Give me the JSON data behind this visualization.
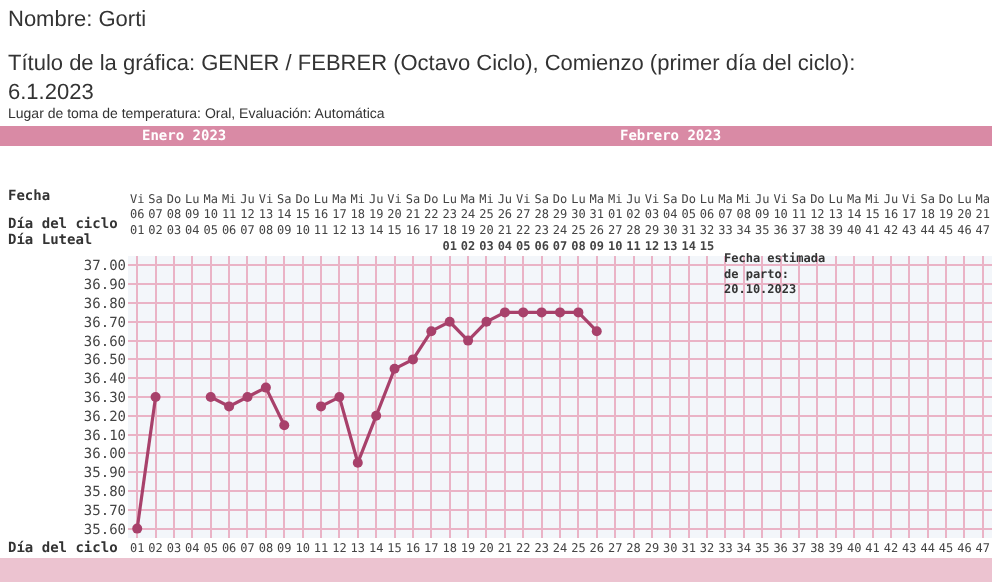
{
  "chart_data": {
    "type": "line",
    "title": "Título de la gráfica: GENER / FEBRER (Octavo Ciclo), Comienzo (primer día del ciclo): 6.1.2023",
    "subtitle": "Lugar de toma de temperatura: Oral, Evaluación: Automática",
    "xlabel": "Día del ciclo",
    "x2label": "Fecha",
    "annotations": [
      "Nombre: Gorti",
      "Enero 2023",
      "Febrero 2023",
      "Fecha estimada\nde parto:\n20.10.2023",
      "Día Luteal"
    ],
    "x": [
      "2023-01-06",
      "2023-01-07",
      "2023-01-08",
      "2023-01-09",
      "2023-01-10",
      "2023-01-11",
      "2023-01-12",
      "2023-01-13",
      "2023-01-14",
      "2023-01-15",
      "2023-01-16",
      "2023-01-17",
      "2023-01-18",
      "2023-01-19",
      "2023-01-20",
      "2023-01-21",
      "2023-01-22",
      "2023-01-23",
      "2023-01-24",
      "2023-01-25",
      "2023-01-26",
      "2023-01-27",
      "2023-01-28",
      "2023-01-29",
      "2023-01-30",
      "2023-01-31"
    ],
    "series": [
      {
        "color": "#a8416b",
        "values": [
          35.6,
          36.3,
          null,
          null,
          36.3,
          36.25,
          36.3,
          36.35,
          36.15,
          null,
          36.25,
          36.3,
          35.95,
          36.2,
          36.45,
          36.5,
          36.65,
          36.7,
          36.6,
          36.7,
          36.75,
          36.75,
          36.75,
          36.75,
          36.75,
          36.65
        ]
      }
    ],
    "marker": "circle",
    "line_style": "solid",
    "grid": true,
    "legend": false,
    "xlim": [
      "2023-01-05T12:00",
      "2023-02-21T12:00"
    ],
    "xticks": [
      {
        "value": "2023-01-06",
        "label": "01"
      },
      {
        "value": "2023-01-07",
        "label": "02"
      },
      {
        "value": "2023-01-08",
        "label": "03"
      },
      {
        "value": "2023-01-09",
        "label": "04"
      },
      {
        "value": "2023-01-10",
        "label": "05"
      },
      {
        "value": "2023-01-11",
        "label": "06"
      },
      {
        "value": "2023-01-12",
        "label": "07"
      },
      {
        "value": "2023-01-13",
        "label": "08"
      },
      {
        "value": "2023-01-14",
        "label": "09"
      },
      {
        "value": "2023-01-15",
        "label": "10"
      },
      {
        "value": "2023-01-16",
        "label": "11"
      },
      {
        "value": "2023-01-17",
        "label": "12"
      },
      {
        "value": "2023-01-18",
        "label": "13"
      },
      {
        "value": "2023-01-19",
        "label": "14"
      },
      {
        "value": "2023-01-20",
        "label": "15"
      },
      {
        "value": "2023-01-21",
        "label": "16"
      },
      {
        "value": "2023-01-22",
        "label": "17"
      },
      {
        "value": "2023-01-23",
        "label": "18"
      },
      {
        "value": "2023-01-24",
        "label": "19"
      },
      {
        "value": "2023-01-25",
        "label": "20"
      },
      {
        "value": "2023-01-26",
        "label": "21"
      },
      {
        "value": "2023-01-27",
        "label": "22"
      },
      {
        "value": "2023-01-28",
        "label": "23"
      },
      {
        "value": "2023-01-29",
        "label": "24"
      },
      {
        "value": "2023-01-30",
        "label": "25"
      },
      {
        "value": "2023-01-31",
        "label": "26"
      },
      {
        "value": "2023-02-01",
        "label": "27"
      },
      {
        "value": "2023-02-02",
        "label": "28"
      },
      {
        "value": "2023-02-03",
        "label": "29"
      },
      {
        "value": "2023-02-04",
        "label": "30"
      },
      {
        "value": "2023-02-05",
        "label": "31"
      },
      {
        "value": "2023-02-06",
        "label": "32"
      },
      {
        "value": "2023-02-07",
        "label": "33"
      },
      {
        "value": "2023-02-08",
        "label": "34"
      },
      {
        "value": "2023-02-09",
        "label": "35"
      },
      {
        "value": "2023-02-10",
        "label": "36"
      },
      {
        "value": "2023-02-11",
        "label": "37"
      },
      {
        "value": "2023-02-12",
        "label": "38"
      },
      {
        "value": "2023-02-13",
        "label": "39"
      },
      {
        "value": "2023-02-14",
        "label": "40"
      },
      {
        "value": "2023-02-15",
        "label": "41"
      },
      {
        "value": "2023-02-16",
        "label": "42"
      },
      {
        "value": "2023-02-17",
        "label": "43"
      },
      {
        "value": "2023-02-18",
        "label": "44"
      },
      {
        "value": "2023-02-19",
        "label": "45"
      },
      {
        "value": "2023-02-20",
        "label": "46"
      },
      {
        "value": "2023-02-21",
        "label": "47"
      }
    ],
    "x2lim": [
      "2023-01-05T12:00",
      "2023-02-21T12:00"
    ],
    "x2ticks": [
      {
        "value": "2023-01-06",
        "label": "Vi\n06\n01"
      },
      {
        "value": "2023-01-07",
        "label": "Sa\n07\n02"
      },
      {
        "value": "2023-01-08",
        "label": "Do\n08\n03"
      },
      {
        "value": "2023-01-09",
        "label": "Lu\n09\n04"
      },
      {
        "value": "2023-01-10",
        "label": "Ma\n10\n05"
      },
      {
        "value": "2023-01-11",
        "label": "Mi\n11\n06"
      },
      {
        "value": "2023-01-12",
        "label": "Ju\n12\n07"
      },
      {
        "value": "2023-01-13",
        "label": "Vi\n13\n08"
      },
      {
        "value": "2023-01-14",
        "label": "Sa\n14\n09"
      },
      {
        "value": "2023-01-15",
        "label": "Do\n15\n10"
      },
      {
        "value": "2023-01-16",
        "label": "Lu\n16\n11"
      },
      {
        "value": "2023-01-17",
        "label": "Ma\n17\n12"
      },
      {
        "value": "2023-01-18",
        "label": "Mi\n18\n13"
      },
      {
        "value": "2023-01-19",
        "label": "Ju\n19\n14"
      },
      {
        "value": "2023-01-20",
        "label": "Vi\n20\n15"
      },
      {
        "value": "2023-01-21",
        "label": "Sa\n21\n16"
      },
      {
        "value": "2023-01-22",
        "label": "Do\n22\n17"
      },
      {
        "value": "2023-01-23",
        "label": "Lu\n23\n18\n01"
      },
      {
        "value": "2023-01-24",
        "label": "Ma\n24\n19\n02"
      },
      {
        "value": "2023-01-25",
        "label": "Mi\n25\n20\n03"
      },
      {
        "value": "2023-01-26",
        "label": "Ju\n26\n21\n04"
      },
      {
        "value": "2023-01-27",
        "label": "Vi\n27\n22\n05"
      },
      {
        "value": "2023-01-28",
        "label": "Sa\n28\n23\n06"
      },
      {
        "value": "2023-01-29",
        "label": "Do\n29\n24\n07"
      },
      {
        "value": "2023-01-30",
        "label": "Lu\n30\n25\n08"
      },
      {
        "value": "2023-01-31",
        "label": "Ma\n31\n26\n09"
      },
      {
        "value": "2023-02-01",
        "label": "Mi\n01\n27\n10"
      },
      {
        "value": "2023-02-02",
        "label": "Ju\n02\n28\n11"
      },
      {
        "value": "2023-02-03",
        "label": "Vi\n03\n29\n12"
      },
      {
        "value": "2023-02-04",
        "label": "Sa\n04\n30\n13"
      },
      {
        "value": "2023-02-05",
        "label": "Do\n05\n31\n14"
      },
      {
        "value": "2023-02-06",
        "label": "Lu\n06\n32\n15"
      },
      {
        "value": "2023-02-07",
        "label": "Ma\n07\n33"
      },
      {
        "value": "2023-02-08",
        "label": "Mi\n08\n34"
      },
      {
        "value": "2023-02-09",
        "label": "Ju\n09\n35"
      },
      {
        "value": "2023-02-10",
        "label": "Vi\n10\n36"
      },
      {
        "value": "2023-02-11",
        "label": "Sa\n11\n37"
      },
      {
        "value": "2023-02-12",
        "label": "Do\n12\n38"
      },
      {
        "value": "2023-02-13",
        "label": "Lu\n13\n39"
      },
      {
        "value": "2023-02-14",
        "label": "Ma\n14\n40"
      },
      {
        "value": "2023-02-15",
        "label": "Mi\n15\n41"
      },
      {
        "value": "2023-02-16",
        "label": "Ju\n16\n42"
      },
      {
        "value": "2023-02-17",
        "label": "Vi\n17\n43"
      },
      {
        "value": "2023-02-18",
        "label": "Sa\n18\n44"
      },
      {
        "value": "2023-02-19",
        "label": "Do\n19\n45"
      },
      {
        "value": "2023-02-20",
        "label": "Lu\n20\n46"
      },
      {
        "value": "2023-02-21",
        "label": "Ma\n21\n47"
      }
    ],
    "ylim": [
      35.55,
      37.05
    ],
    "yticks": [
      {
        "value": 35.6,
        "label": "35.60"
      },
      {
        "value": 35.7,
        "label": "35.70"
      },
      {
        "value": 35.8,
        "label": "35.80"
      },
      {
        "value": 35.9,
        "label": "35.90"
      },
      {
        "value": 36.0,
        "label": "36.00"
      },
      {
        "value": 36.1,
        "label": "36.10"
      },
      {
        "value": 36.2,
        "label": "36.20"
      },
      {
        "value": 36.3,
        "label": "36.30"
      },
      {
        "value": 36.4,
        "label": "36.40"
      },
      {
        "value": 36.5,
        "label": "36.50"
      },
      {
        "value": 36.6,
        "label": "36.60"
      },
      {
        "value": 36.7,
        "label": "36.70"
      },
      {
        "value": 36.8,
        "label": "36.80"
      },
      {
        "value": 36.9,
        "label": "36.90"
      },
      {
        "value": 37.0,
        "label": "37.00"
      }
    ]
  }
}
